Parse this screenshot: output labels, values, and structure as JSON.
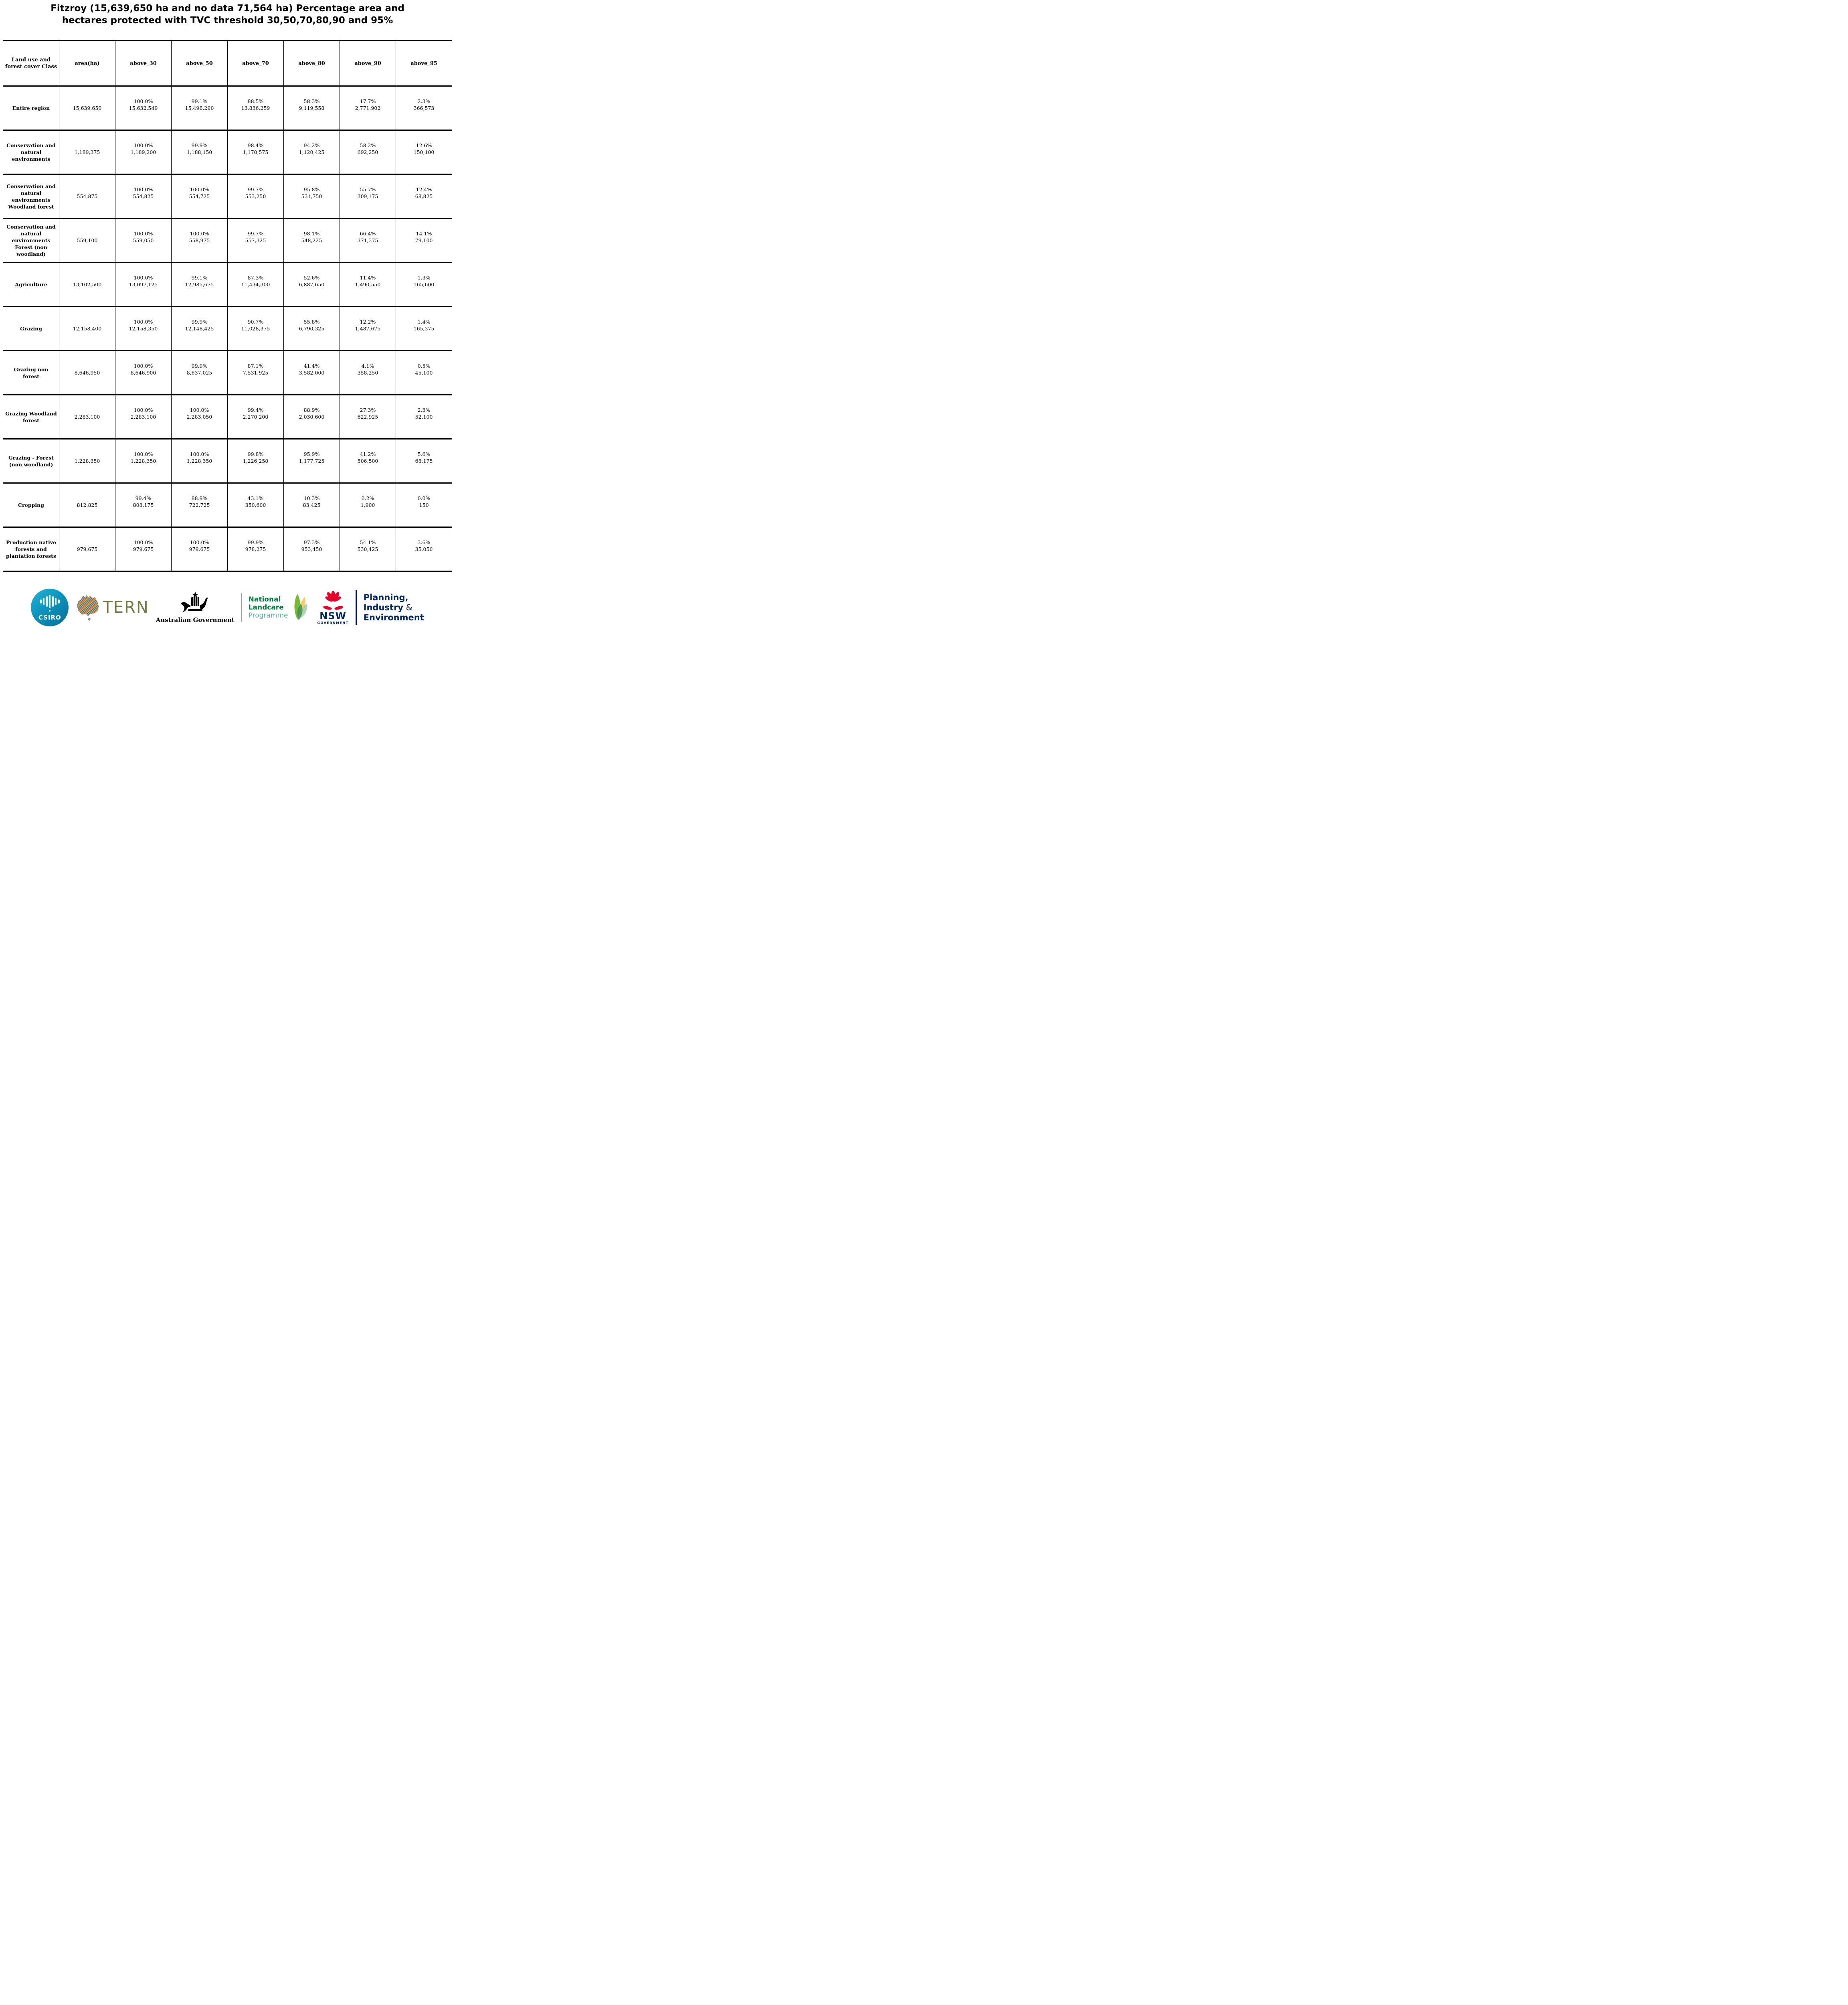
{
  "title": {
    "lines": [
      "Fitzroy (15,639,650 ha and no data 71,564 ha) Percentage area and",
      "hectares protected with TVC threshold 30,50,70,80,90 and 95%"
    ]
  },
  "chart_data": {
    "type": "table",
    "title": "Fitzroy (15,639,650 ha and no data 71,564 ha) Percentage area and hectares protected with TVC threshold 30,50,70,80,90 and 95%",
    "columns": [
      "Land use and forest cover Class",
      "area(ha)",
      "above_30",
      "above_50",
      "above_70",
      "above_80",
      "above_90",
      "above_95"
    ],
    "rows": [
      {
        "label": "Entire region",
        "area_ha": "15,639,650",
        "cells": [
          {
            "pct": "100.0%",
            "ha": "15,632,549"
          },
          {
            "pct": "99.1%",
            "ha": "15,498,290"
          },
          {
            "pct": "88.5%",
            "ha": "13,836,259"
          },
          {
            "pct": "58.3%",
            "ha": "9,119,558"
          },
          {
            "pct": "17.7%",
            "ha": "2,771,902"
          },
          {
            "pct": "2.3%",
            "ha": "366,573"
          }
        ]
      },
      {
        "label": "Conservation and natural environments",
        "area_ha": "1,189,375",
        "cells": [
          {
            "pct": "100.0%",
            "ha": "1,189,200"
          },
          {
            "pct": "99.9%",
            "ha": "1,188,150"
          },
          {
            "pct": "98.4%",
            "ha": "1,170,575"
          },
          {
            "pct": "94.2%",
            "ha": "1,120,425"
          },
          {
            "pct": "58.2%",
            "ha": "692,250"
          },
          {
            "pct": "12.6%",
            "ha": "150,100"
          }
        ]
      },
      {
        "label": "Conservation and natural environments Woodland forest",
        "area_ha": "554,875",
        "cells": [
          {
            "pct": "100.0%",
            "ha": "554,825"
          },
          {
            "pct": "100.0%",
            "ha": "554,725"
          },
          {
            "pct": "99.7%",
            "ha": "553,250"
          },
          {
            "pct": "95.8%",
            "ha": "531,750"
          },
          {
            "pct": "55.7%",
            "ha": "309,175"
          },
          {
            "pct": "12.4%",
            "ha": "68,825"
          }
        ]
      },
      {
        "label": "Conservation and natural environments Forest (non woodland)",
        "area_ha": "559,100",
        "cells": [
          {
            "pct": "100.0%",
            "ha": "559,050"
          },
          {
            "pct": "100.0%",
            "ha": "558,975"
          },
          {
            "pct": "99.7%",
            "ha": "557,325"
          },
          {
            "pct": "98.1%",
            "ha": "548,225"
          },
          {
            "pct": "66.4%",
            "ha": "371,375"
          },
          {
            "pct": "14.1%",
            "ha": "79,100"
          }
        ]
      },
      {
        "label": "Agriculture",
        "area_ha": "13,102,500",
        "cells": [
          {
            "pct": "100.0%",
            "ha": "13,097,125"
          },
          {
            "pct": "99.1%",
            "ha": "12,985,675"
          },
          {
            "pct": "87.3%",
            "ha": "11,434,300"
          },
          {
            "pct": "52.6%",
            "ha": "6,887,650"
          },
          {
            "pct": "11.4%",
            "ha": "1,490,550"
          },
          {
            "pct": "1.3%",
            "ha": "165,600"
          }
        ]
      },
      {
        "label": "Grazing",
        "area_ha": "12,158,400",
        "cells": [
          {
            "pct": "100.0%",
            "ha": "12,158,350"
          },
          {
            "pct": "99.9%",
            "ha": "12,148,425"
          },
          {
            "pct": "90.7%",
            "ha": "11,028,375"
          },
          {
            "pct": "55.8%",
            "ha": "6,790,325"
          },
          {
            "pct": "12.2%",
            "ha": "1,487,675"
          },
          {
            "pct": "1.4%",
            "ha": "165,375"
          }
        ]
      },
      {
        "label": "Grazing non forest",
        "area_ha": "8,646,950",
        "cells": [
          {
            "pct": "100.0%",
            "ha": "8,646,900"
          },
          {
            "pct": "99.9%",
            "ha": "8,637,025"
          },
          {
            "pct": "87.1%",
            "ha": "7,531,925"
          },
          {
            "pct": "41.4%",
            "ha": "3,582,000"
          },
          {
            "pct": "4.1%",
            "ha": "358,250"
          },
          {
            "pct": "0.5%",
            "ha": "45,100"
          }
        ]
      },
      {
        "label": "Grazing Woodland forest",
        "area_ha": "2,283,100",
        "cells": [
          {
            "pct": "100.0%",
            "ha": "2,283,100"
          },
          {
            "pct": "100.0%",
            "ha": "2,283,050"
          },
          {
            "pct": "99.4%",
            "ha": "2,270,200"
          },
          {
            "pct": "88.9%",
            "ha": "2,030,600"
          },
          {
            "pct": "27.3%",
            "ha": "622,925"
          },
          {
            "pct": "2.3%",
            "ha": "52,100"
          }
        ]
      },
      {
        "label": "Grazing - Forest (non woodland)",
        "area_ha": "1,228,350",
        "cells": [
          {
            "pct": "100.0%",
            "ha": "1,228,350"
          },
          {
            "pct": "100.0%",
            "ha": "1,228,350"
          },
          {
            "pct": "99.8%",
            "ha": "1,226,250"
          },
          {
            "pct": "95.9%",
            "ha": "1,177,725"
          },
          {
            "pct": "41.2%",
            "ha": "506,500"
          },
          {
            "pct": "5.6%",
            "ha": "68,175"
          }
        ]
      },
      {
        "label": "Cropping",
        "area_ha": "812,825",
        "cells": [
          {
            "pct": "99.4%",
            "ha": "808,175"
          },
          {
            "pct": "88.9%",
            "ha": "722,725"
          },
          {
            "pct": "43.1%",
            "ha": "350,600"
          },
          {
            "pct": "10.3%",
            "ha": "83,425"
          },
          {
            "pct": "0.2%",
            "ha": "1,900"
          },
          {
            "pct": "0.0%",
            "ha": "150"
          }
        ]
      },
      {
        "label": "Production native forests and plantation forests",
        "area_ha": "979,675",
        "cells": [
          {
            "pct": "100.0%",
            "ha": "979,675"
          },
          {
            "pct": "100.0%",
            "ha": "979,675"
          },
          {
            "pct": "99.9%",
            "ha": "978,275"
          },
          {
            "pct": "97.3%",
            "ha": "953,450"
          },
          {
            "pct": "54.1%",
            "ha": "530,425"
          },
          {
            "pct": "3.6%",
            "ha": "35,050"
          }
        ]
      }
    ]
  },
  "footer": {
    "logos": {
      "csiro": {
        "label": "CSIRO"
      },
      "tern": {
        "label": "TERN"
      },
      "ausgov": {
        "label": "Australian Government"
      },
      "landcare": {
        "line1": "National",
        "line2": "Landcare",
        "line3": "Programme"
      },
      "nsw": {
        "label": "NSW",
        "sublabel": "GOVERNMENT"
      },
      "planning": {
        "line1": "Planning,",
        "line2": "Industry",
        "line2_suffix": " &",
        "line3": "Environment"
      }
    },
    "colors": {
      "csiro_teal": "#0d94bd",
      "tern_olive": "#6d7b42",
      "landcare_green": "#00843d",
      "landcare_light_green": "#58b893",
      "nsw_red": "#e4002b",
      "navy": "#002664"
    }
  }
}
